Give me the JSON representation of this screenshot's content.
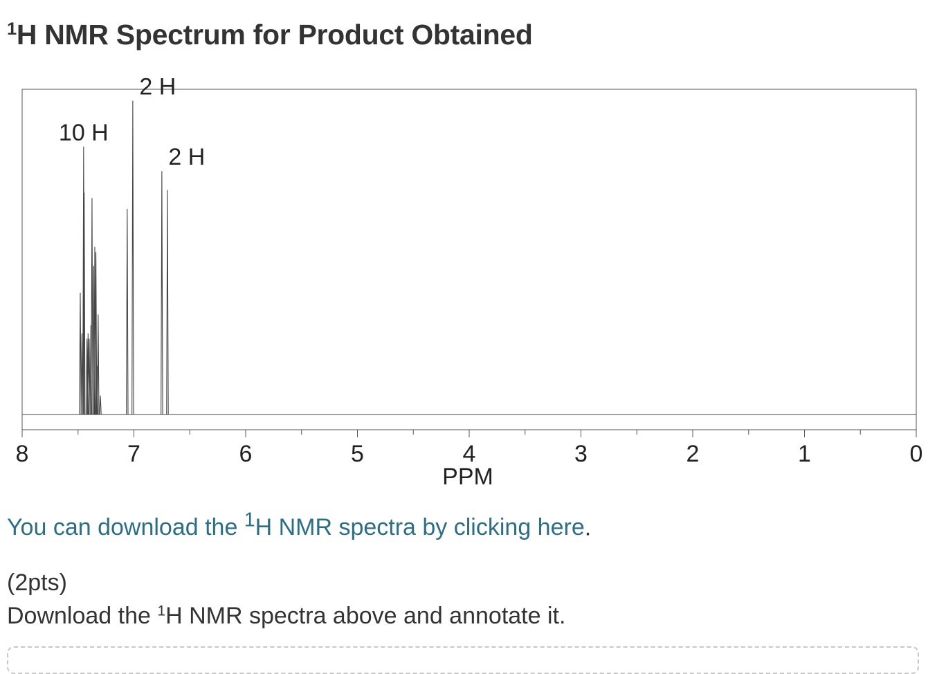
{
  "page": {
    "title_sup": "1",
    "title_rest": "H NMR Spectrum for Product Obtained",
    "link": {
      "pre": "You can download the ",
      "sup": "1",
      "text": "H NMR spectra by clicking here",
      "post": "."
    },
    "points": "(2pts)",
    "instruction": {
      "pre": "Download the ",
      "sup": "1",
      "post": "H NMR spectra above and annotate it."
    }
  },
  "colors": {
    "text": "#333333",
    "link": "#2b6f87",
    "spectrum": "#444444",
    "axis": "#555555"
  },
  "chart_data": {
    "type": "line",
    "title": "",
    "xlabel": "PPM",
    "ylabel": "",
    "xlim": [
      8,
      0
    ],
    "ylim": [
      0,
      1
    ],
    "x_reversed": true,
    "grid": false,
    "major_ticks": [
      "8",
      "7",
      "6",
      "5",
      "4",
      "3",
      "2",
      "1",
      "0"
    ],
    "minor_tick_step": 0.5,
    "peaks": [
      {
        "ppm": 7.48,
        "height": 0.45
      },
      {
        "ppm": 7.465,
        "height": 0.3
      },
      {
        "ppm": 7.45,
        "height": 0.99
      },
      {
        "ppm": 7.445,
        "height": 0.82
      },
      {
        "ppm": 7.42,
        "height": 0.28
      },
      {
        "ppm": 7.41,
        "height": 0.3
      },
      {
        "ppm": 7.4,
        "height": 0.28
      },
      {
        "ppm": 7.385,
        "height": 0.33
      },
      {
        "ppm": 7.375,
        "height": 0.8
      },
      {
        "ppm": 7.36,
        "height": 0.55
      },
      {
        "ppm": 7.35,
        "height": 0.62
      },
      {
        "ppm": 7.34,
        "height": 0.6
      },
      {
        "ppm": 7.33,
        "height": 0.18
      },
      {
        "ppm": 7.32,
        "height": 0.37
      },
      {
        "ppm": 7.3,
        "height": 0.07
      },
      {
        "ppm": 7.06,
        "height": 0.76
      },
      {
        "ppm": 7.01,
        "height": 1.16
      },
      {
        "ppm": 6.75,
        "height": 0.9
      },
      {
        "ppm": 6.7,
        "height": 0.83
      }
    ],
    "annotations": [
      {
        "text": "10 H",
        "ppm": 7.45
      },
      {
        "text": "2 H",
        "ppm": 7.01
      },
      {
        "text": "2 H",
        "ppm": 6.75
      }
    ]
  }
}
